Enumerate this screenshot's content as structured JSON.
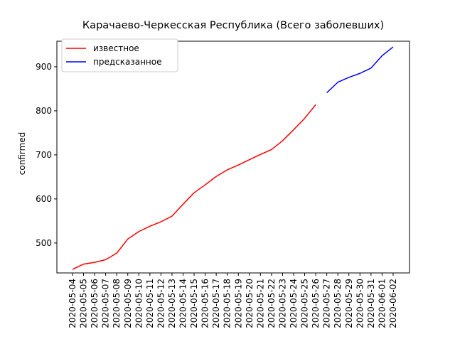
{
  "chart_data": {
    "type": "line",
    "title": "Карачаево-Черкесская Республика (Всего заболевших)",
    "xlabel": "",
    "ylabel": "confirmed",
    "ylim": [
      432,
      958
    ],
    "yticks": [
      500,
      600,
      700,
      800,
      900
    ],
    "grid": false,
    "legend_position": "top-left",
    "categories": [
      "2020-05-04",
      "2020-05-05",
      "2020-05-06",
      "2020-05-07",
      "2020-05-08",
      "2020-05-09",
      "2020-05-10",
      "2020-05-11",
      "2020-05-12",
      "2020-05-13",
      "2020-05-14",
      "2020-05-15",
      "2020-05-16",
      "2020-05-17",
      "2020-05-18",
      "2020-05-19",
      "2020-05-20",
      "2020-05-21",
      "2020-05-22",
      "2020-05-23",
      "2020-05-24",
      "2020-05-25",
      "2020-05-26",
      "2020-05-27",
      "2020-05-28",
      "2020-05-29",
      "2020-05-30",
      "2020-05-31",
      "2020-06-01",
      "2020-06-02"
    ],
    "series": [
      {
        "name": "известное",
        "color": "#ff0000",
        "x": [
          "2020-05-04",
          "2020-05-05",
          "2020-05-06",
          "2020-05-07",
          "2020-05-08",
          "2020-05-09",
          "2020-05-10",
          "2020-05-11",
          "2020-05-12",
          "2020-05-13",
          "2020-05-14",
          "2020-05-15",
          "2020-05-16",
          "2020-05-17",
          "2020-05-18",
          "2020-05-19",
          "2020-05-20",
          "2020-05-21",
          "2020-05-22",
          "2020-05-23",
          "2020-05-24",
          "2020-05-25",
          "2020-05-26"
        ],
        "values": [
          440,
          452,
          456,
          462,
          477,
          509,
          526,
          538,
          548,
          561,
          588,
          614,
          632,
          651,
          666,
          677,
          689,
          701,
          712,
          732,
          757,
          783,
          814
        ]
      },
      {
        "name": "предсказанное",
        "color": "#0000ff",
        "x": [
          "2020-05-27",
          "2020-05-28",
          "2020-05-29",
          "2020-05-30",
          "2020-05-31",
          "2020-06-01",
          "2020-06-02"
        ],
        "values": [
          841,
          865,
          876,
          885,
          897,
          925,
          945
        ]
      }
    ]
  }
}
